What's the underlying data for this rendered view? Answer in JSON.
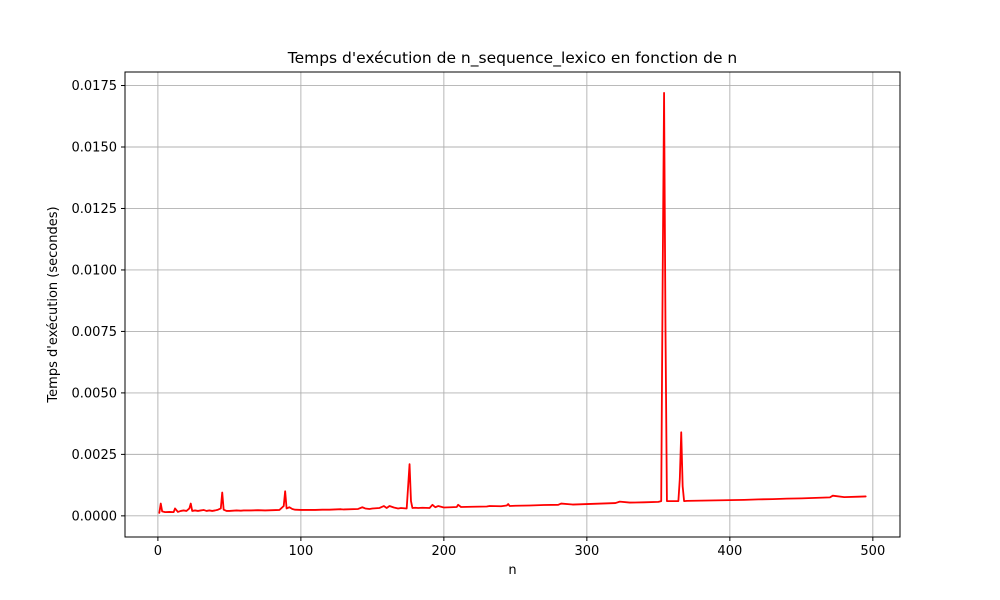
{
  "chart_data": {
    "type": "line",
    "title": "Temps d'exécution de n_sequence_lexico en fonction de n",
    "xlabel": "n",
    "ylabel": "Temps d'exécution (secondes)",
    "xlim": [
      -23,
      519
    ],
    "ylim": [
      -0.00086,
      0.01805
    ],
    "xticks": [
      0,
      100,
      200,
      300,
      400,
      500
    ],
    "xtick_labels": [
      "0",
      "100",
      "200",
      "300",
      "400",
      "500"
    ],
    "yticks": [
      0.0,
      0.0025,
      0.005,
      0.0075,
      0.01,
      0.0125,
      0.015,
      0.0175
    ],
    "ytick_labels": [
      "0.0000",
      "0.0025",
      "0.0050",
      "0.0075",
      "0.0100",
      "0.0125",
      "0.0150",
      "0.0175"
    ],
    "grid": true,
    "series": [
      {
        "color": "#ff0000",
        "x": [
          1,
          2,
          3,
          5,
          8,
          11,
          12,
          14,
          16,
          18,
          20,
          22,
          23,
          24,
          26,
          28,
          30,
          32,
          34,
          36,
          38,
          40,
          42,
          44,
          45,
          46,
          48,
          50,
          55,
          58,
          60,
          65,
          70,
          75,
          80,
          85,
          88,
          89,
          90,
          92,
          94,
          96,
          100,
          110,
          115,
          120,
          128,
          130,
          140,
          143,
          145,
          148,
          150,
          155,
          158,
          160,
          162,
          165,
          168,
          170,
          174,
          176,
          177,
          178,
          180,
          182,
          185,
          190,
          192,
          194,
          196,
          200,
          205,
          209,
          210,
          212,
          220,
          230,
          232,
          240,
          244,
          245,
          246,
          250,
          260,
          270,
          280,
          282,
          290,
          300,
          310,
          320,
          323,
          330,
          340,
          350,
          352,
          353,
          354,
          355,
          356,
          360,
          364,
          365,
          366,
          367,
          368,
          370,
          380,
          390,
          400,
          410,
          420,
          430,
          440,
          450,
          460,
          470,
          472,
          480,
          490,
          495
        ],
        "y": [
          0.00012,
          0.0005,
          0.00018,
          0.00015,
          0.00016,
          0.00015,
          0.0003,
          0.00016,
          0.0002,
          0.00022,
          0.0002,
          0.0003,
          0.0005,
          0.0002,
          0.00022,
          0.0002,
          0.00022,
          0.00024,
          0.0002,
          0.00022,
          0.0002,
          0.00022,
          0.00025,
          0.0003,
          0.00095,
          0.00025,
          0.0002,
          0.0002,
          0.00022,
          0.00021,
          0.00022,
          0.00022,
          0.00023,
          0.00022,
          0.00023,
          0.00024,
          0.0004,
          0.001,
          0.0003,
          0.00035,
          0.00028,
          0.00025,
          0.00024,
          0.00024,
          0.00025,
          0.00025,
          0.00027,
          0.00026,
          0.00028,
          0.00035,
          0.0003,
          0.00028,
          0.0003,
          0.00032,
          0.0004,
          0.00032,
          0.0004,
          0.00034,
          0.0003,
          0.00032,
          0.0003,
          0.0021,
          0.0006,
          0.00032,
          0.00033,
          0.00032,
          0.00033,
          0.00032,
          0.00045,
          0.00035,
          0.0004,
          0.00034,
          0.00035,
          0.00036,
          0.00045,
          0.00036,
          0.00037,
          0.00038,
          0.0004,
          0.00039,
          0.00042,
          0.00048,
          0.0004,
          0.00041,
          0.00042,
          0.00044,
          0.00045,
          0.0005,
          0.00046,
          0.00048,
          0.0005,
          0.00052,
          0.00058,
          0.00054,
          0.00055,
          0.00057,
          0.0006,
          0.0095,
          0.0172,
          0.0075,
          0.0006,
          0.0006,
          0.0006,
          0.0015,
          0.0034,
          0.0012,
          0.0006,
          0.00061,
          0.00062,
          0.00063,
          0.00064,
          0.00065,
          0.00067,
          0.00068,
          0.0007,
          0.00071,
          0.00073,
          0.00075,
          0.00082,
          0.00076,
          0.00078,
          0.00079
        ]
      }
    ]
  }
}
